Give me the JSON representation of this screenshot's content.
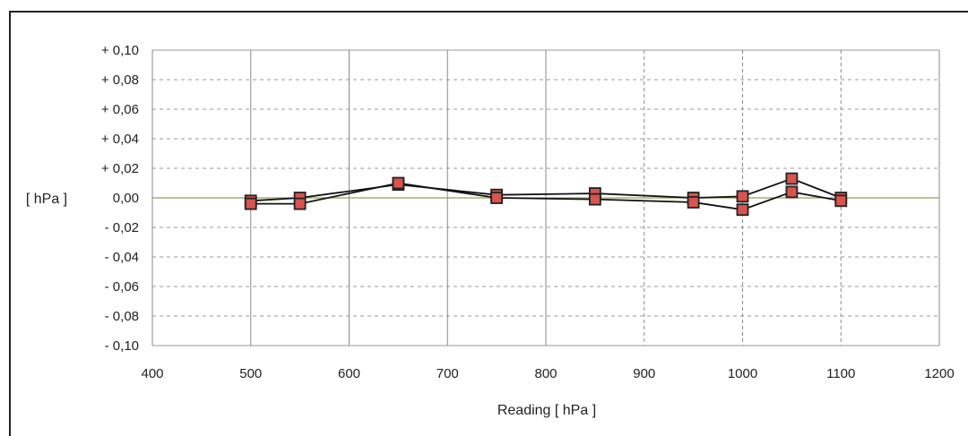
{
  "chart_data": {
    "type": "line",
    "title": "",
    "xlabel": "Reading [ hPa ]",
    "ylabel": "[ hPa ]",
    "xlim": [
      400,
      1200
    ],
    "ylim": [
      -0.1,
      0.1
    ],
    "x_ticks": [
      400,
      500,
      600,
      700,
      800,
      900,
      1000,
      1100,
      1200
    ],
    "y_ticks": [
      0.1,
      0.08,
      0.06,
      0.04,
      0.02,
      0.0,
      -0.02,
      -0.04,
      -0.06,
      -0.08,
      -0.1
    ],
    "y_tick_labels": [
      "+ 0,10",
      "+ 0,08",
      "+ 0,06",
      "+ 0,04",
      "+ 0,02",
      "0,00",
      "- 0,02",
      "- 0,04",
      "- 0,06",
      "- 0,08",
      "- 0,10"
    ],
    "grid": true,
    "legend": "none",
    "series": [
      {
        "x": [
          500,
          550,
          650,
          750,
          850,
          950,
          1000,
          1050,
          1100
        ],
        "y": [
          -0.002,
          0.0,
          0.009,
          0.002,
          0.003,
          0.0,
          0.001,
          0.013,
          0.0
        ]
      },
      {
        "x": [
          500,
          550,
          650,
          750,
          850,
          950,
          1000,
          1050,
          1100
        ],
        "y": [
          -0.004,
          -0.004,
          0.01,
          0.0,
          -0.001,
          -0.003,
          -0.008,
          0.004,
          -0.002
        ]
      }
    ],
    "colors": {
      "marker_fill": "#d9534f",
      "marker_stroke": "#222222",
      "line": "#111111",
      "grid_v": "#8a8a8a",
      "grid_h": "#9a9a9a",
      "zero_line": "#9c9c5a"
    }
  }
}
